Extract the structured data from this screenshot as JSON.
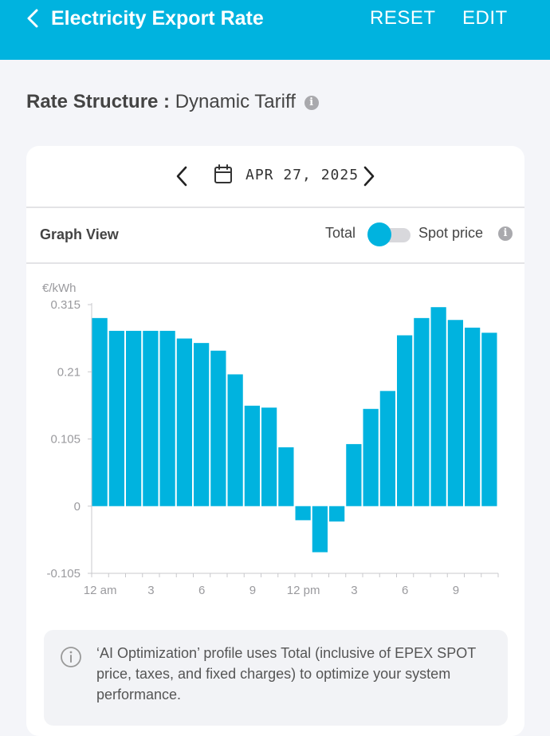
{
  "header": {
    "title": "Electricity Export Rate",
    "reset_label": "RESET",
    "edit_label": "EDIT",
    "back_icon": "chevron-left-icon"
  },
  "rate": {
    "label": "Rate Structure :",
    "value": "Dynamic Tariff",
    "info_icon": "info-icon"
  },
  "date_nav": {
    "date": "APR 27, 2025",
    "calendar_icon": "calendar-icon"
  },
  "graph_controls": {
    "title": "Graph View",
    "total_label": "Total",
    "spot_label": "Spot price",
    "toggle_on": "Total"
  },
  "notice": {
    "text": "‘AI Optimization’ profile uses Total (inclusive of EPEX SPOT price, taxes, and fixed charges) to optimize your system performance."
  },
  "colors": {
    "accent": "#00b3df",
    "bar": "#00b3df",
    "header_text": "#ffffff"
  },
  "chart_data": {
    "type": "bar",
    "ylabel": "€/kWh",
    "ylim": [
      -0.105,
      0.315
    ],
    "yticks": [
      "0.315",
      "0.21",
      "0.105",
      "0",
      "-0.105"
    ],
    "ytick_values": [
      0.315,
      0.21,
      0.105,
      0,
      -0.105
    ],
    "xtick_labels": [
      "12 am",
      "3",
      "6",
      "9",
      "12 pm",
      "3",
      "6",
      "9"
    ],
    "xtick_hours": [
      0,
      3,
      6,
      9,
      12,
      15,
      18,
      21
    ],
    "categories": [
      "0",
      "1",
      "2",
      "3",
      "4",
      "5",
      "6",
      "7",
      "8",
      "9",
      "10",
      "11",
      "12",
      "13",
      "14",
      "15",
      "16",
      "17",
      "18",
      "19",
      "20",
      "21",
      "22",
      "23"
    ],
    "values": [
      0.294,
      0.274,
      0.274,
      0.274,
      0.274,
      0.262,
      0.255,
      0.243,
      0.206,
      0.157,
      0.154,
      0.092,
      -0.022,
      -0.072,
      -0.024,
      0.097,
      0.152,
      0.18,
      0.267,
      0.294,
      0.311,
      0.291,
      0.279,
      0.271
    ],
    "grid": false
  }
}
